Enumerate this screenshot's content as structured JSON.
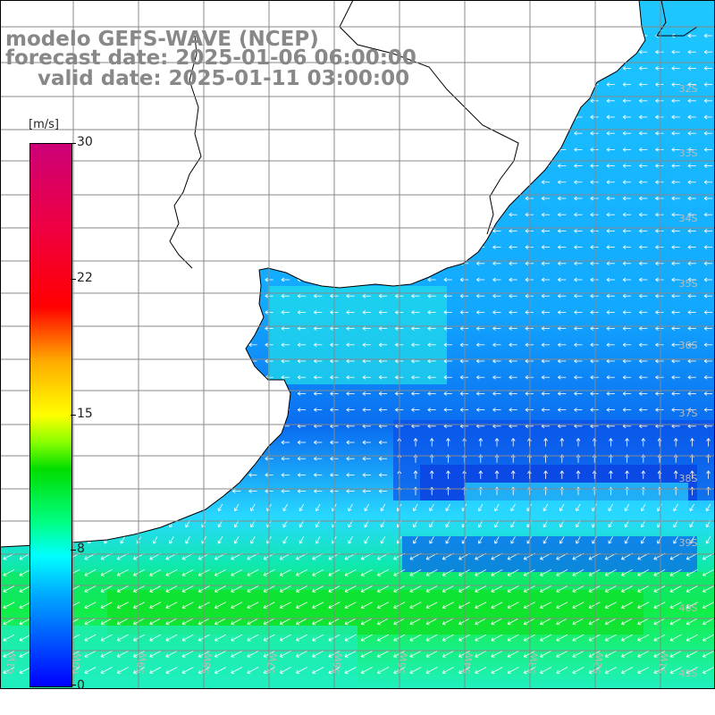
{
  "title": {
    "line1": "modelo GEFS-WAVE (NCEP)",
    "line2": "forecast date: 2025-01-06 06:00:00",
    "line3": "valid date: 2025-01-11 03:00:00"
  },
  "colorbar": {
    "unit": "[m/s]",
    "ticks": [
      "30",
      "22",
      "15",
      "8",
      "0"
    ]
  },
  "latitude_labels": [
    "32S",
    "33S",
    "34S",
    "35S",
    "36S",
    "37S",
    "38S",
    "39S",
    "40S",
    "41S"
  ],
  "longitude_labels": [
    "61W",
    "60W",
    "59W",
    "58W",
    "57W",
    "56W",
    "55W",
    "54W",
    "53W",
    "52W",
    "51W"
  ],
  "colors": {
    "land": "#ffffff",
    "grid": "#888888",
    "coast": "#000000",
    "arrows": "#ffffff"
  }
}
